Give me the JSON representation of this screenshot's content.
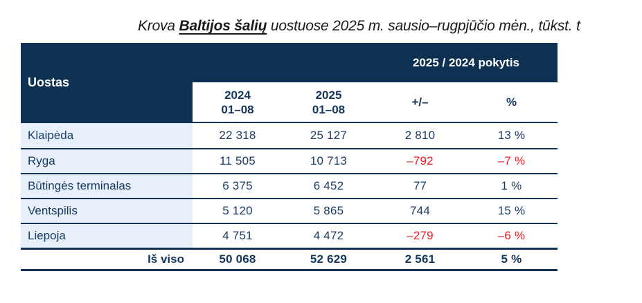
{
  "title": {
    "prefix": "Krova ",
    "highlight": "Baltijos šalių",
    "suffix": " uostuose 2025 m. sausio–rugpjūčio mėn., tūkst. t"
  },
  "table": {
    "header": {
      "port_label": "Uostas",
      "change_label": "2025 / 2024 pokytis",
      "col_2024_line1": "2024",
      "col_2024_line2": "01–08",
      "col_2025_line1": "2025",
      "col_2025_line2": "01–08",
      "col_diff": "+/–",
      "col_pct": "%"
    },
    "rows": [
      {
        "name": "Klaipėda",
        "v2024": "22 318",
        "v2025": "25 127",
        "diff": "2 810",
        "pct": "13 %"
      },
      {
        "name": "Ryga",
        "v2024": "11 505",
        "v2025": "10 713",
        "diff": "–792",
        "pct": "–7 %"
      },
      {
        "name": "Būtingės terminalas",
        "v2024": "6 375",
        "v2025": "6 452",
        "diff": "77",
        "pct": "1 %"
      },
      {
        "name": "Ventspilis",
        "v2024": "5 120",
        "v2025": "5 865",
        "diff": "744",
        "pct": "15 %"
      },
      {
        "name": "Liepoja",
        "v2024": "4 751",
        "v2025": "4 472",
        "diff": "–279",
        "pct": "–6 %"
      }
    ],
    "total": {
      "label": "Iš viso",
      "v2024": "50 068",
      "v2025": "52 629",
      "diff": "2 561",
      "pct": "5 %"
    }
  },
  "colors": {
    "navy": "#0e3051",
    "text_navy": "#1b3c63",
    "light_blue": "#e7f0fa",
    "negative_red": "#ee1c24",
    "header_text": "#ffffff"
  }
}
